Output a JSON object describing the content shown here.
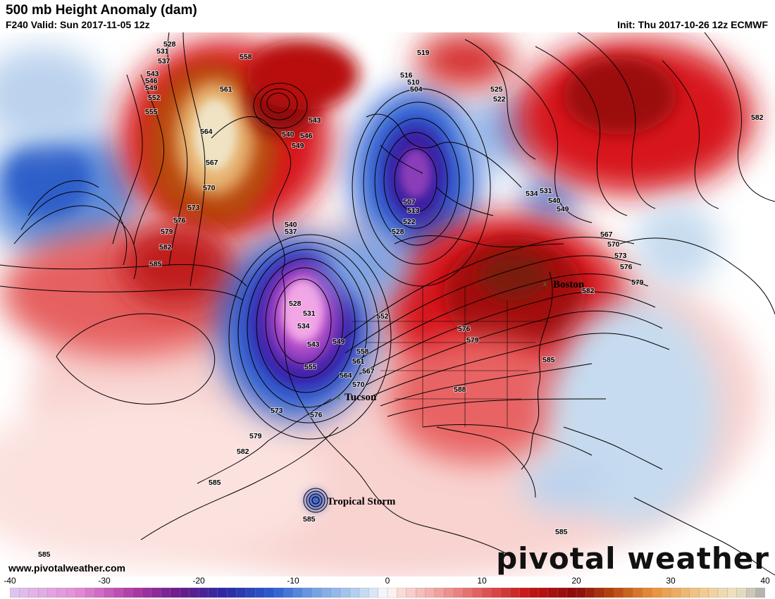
{
  "header": {
    "title": "500 mb Height Anomaly (dam)",
    "valid": "F240 Valid: Sun 2017-11-05 12z",
    "init": "Init: Thu 2017-10-26 12z ECMWF"
  },
  "colors": {
    "positive_strong": "#8b0a0a",
    "positive_mid": "#d7191c",
    "positive_light": "#f4b9b9",
    "negative_light": "#c6dbef",
    "negative_mid": "#2c5fd0",
    "negative_strong": "#2a0d8a",
    "negative_extreme": "#e58fd8",
    "high_extreme": "#efe3c4",
    "land_border": "#000000"
  },
  "cities": [
    {
      "name": "Boston"
    },
    {
      "name": "Tucson"
    },
    {
      "name": "Tropical Storm"
    }
  ],
  "contour_labels": [
    "528",
    "531",
    "537",
    "543",
    "546",
    "549",
    "552",
    "555",
    "558",
    "561",
    "564",
    "567",
    "570",
    "573",
    "576",
    "579",
    "582",
    "585",
    "519",
    "516",
    "510",
    "504",
    "525",
    "522",
    "582",
    "540",
    "543",
    "546",
    "549",
    "507",
    "513",
    "522",
    "528",
    "534",
    "531",
    "540",
    "549",
    "567",
    "570",
    "573",
    "576",
    "579",
    "582",
    "540",
    "537",
    "528",
    "531",
    "534",
    "543",
    "549",
    "552",
    "555",
    "558",
    "561",
    "564",
    "567",
    "570",
    "573",
    "576",
    "579",
    "582",
    "576",
    "579",
    "585",
    "588",
    "585",
    "585",
    "585",
    "585"
  ],
  "colorbar": {
    "ticks": [
      "-40",
      "-30",
      "-20",
      "-10",
      "0",
      "10",
      "20",
      "30",
      "40"
    ],
    "min": -40,
    "max": 40,
    "step": 1
  },
  "footer": {
    "website": "www.pivotalweather.com",
    "brand": "pivotal weather"
  }
}
